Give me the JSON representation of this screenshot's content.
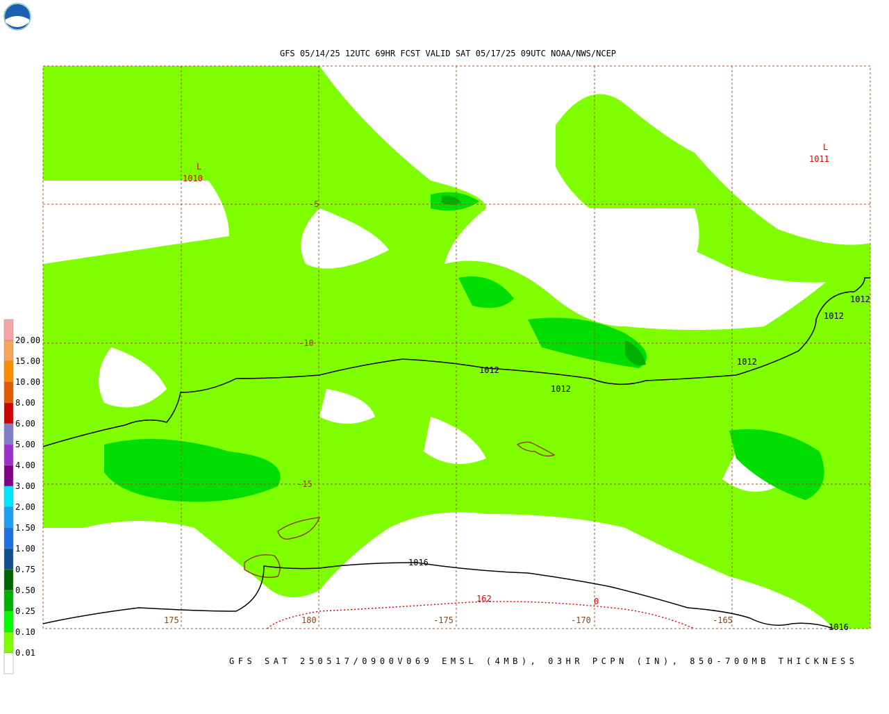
{
  "header": {
    "title": "GFS 05/14/25 12UTC 69HR FCST VALID SAT 05/17/25 09UTC NOAA/NWS/NCEP"
  },
  "footer": {
    "caption": "GFS SAT 250517/0900V069 EMSL (4MB), 03HR PCPN (IN), 850-700MB THICKNESS"
  },
  "legend": {
    "labels": [
      "20.00",
      "15.00",
      "10.00",
      "8.00",
      "6.00",
      "5.00",
      "4.00",
      "3.00",
      "2.00",
      "1.50",
      "1.00",
      "0.75",
      "0.50",
      "0.25",
      "0.10",
      "0.01"
    ],
    "colors": [
      "#f4a6a6",
      "#f4a460",
      "#ff8c00",
      "#e05a00",
      "#cc0000",
      "#8080c8",
      "#9932cc",
      "#800080",
      "#00e5ff",
      "#1ea0f0",
      "#1e6fe0",
      "#104e8b",
      "#006400",
      "#00b000",
      "#00ff00",
      "#7fff00",
      "#ffffff"
    ]
  },
  "map": {
    "lat_labels": [
      "-5",
      "-10",
      "-15"
    ],
    "lon_labels": [
      "175",
      "180",
      "-175",
      "-170",
      "-165"
    ],
    "lows": [
      {
        "symbol": "L",
        "value": "1010"
      },
      {
        "symbol": "L",
        "value": "1011"
      }
    ],
    "pressure_labels": [
      "1012",
      "1012",
      "1012",
      "1012",
      "1012",
      "1016",
      "1016"
    ],
    "thickness_labels": [
      "162",
      "0"
    ]
  }
}
